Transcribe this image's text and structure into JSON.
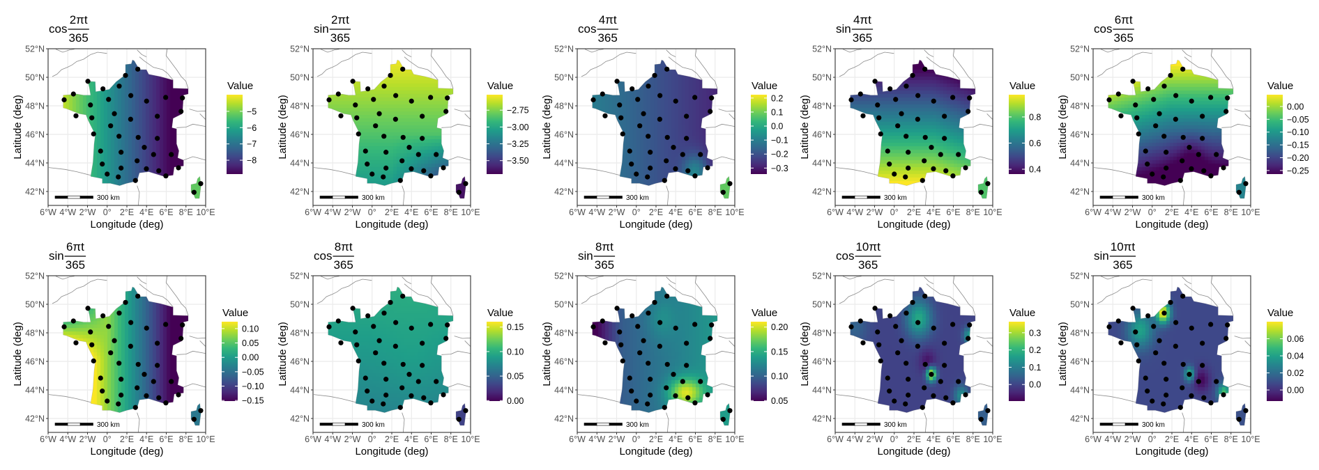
{
  "chart_data": [
    {
      "type": "heatmap",
      "title": {
        "func": "cos",
        "numerator": "2πt",
        "denominator": "365"
      },
      "legend": {
        "title": "Value",
        "min": -8.85,
        "max": -3.98,
        "ticks": [
          -5,
          -6,
          -7,
          -8
        ],
        "tick_labels": [
          "−5",
          "−6",
          "−7",
          "−8"
        ]
      }
    },
    {
      "type": "heatmap",
      "title": {
        "func": "sin",
        "numerator": "2πt",
        "denominator": "365"
      },
      "legend": {
        "title": "Value",
        "min": -3.7,
        "max": -2.52,
        "ticks": [
          -2.75,
          -3.0,
          -3.25,
          -3.5
        ],
        "tick_labels": [
          "−2.75",
          "−3.00",
          "−3.25",
          "−3.50"
        ]
      }
    },
    {
      "type": "heatmap",
      "title": {
        "func": "cos",
        "numerator": "4πt",
        "denominator": "365"
      },
      "legend": {
        "title": "Value",
        "min": -0.343,
        "max": 0.224,
        "ticks": [
          0.2,
          0.1,
          0.0,
          -0.1,
          -0.2,
          -0.3
        ],
        "tick_labels": [
          "0.2",
          "0.1",
          "0.0",
          "−0.1",
          "−0.2",
          "−0.3"
        ]
      }
    },
    {
      "type": "heatmap",
      "title": {
        "func": "sin",
        "numerator": "4πt",
        "denominator": "365"
      },
      "legend": {
        "title": "Value",
        "min": 0.363,
        "max": 0.97,
        "ticks": [
          0.8,
          0.6,
          0.4
        ],
        "tick_labels": [
          "0.8",
          "0.6",
          "0.4"
        ]
      }
    },
    {
      "type": "heatmap",
      "title": {
        "func": "cos",
        "numerator": "6πt",
        "denominator": "365"
      },
      "legend": {
        "title": "Value",
        "min": -0.264,
        "max": 0.046,
        "ticks": [
          0.0,
          -0.05,
          -0.1,
          -0.15,
          -0.2,
          -0.25
        ],
        "tick_labels": [
          "0.00",
          "−0.05",
          "−0.10",
          "−0.15",
          "−0.20",
          "−0.25"
        ]
      }
    },
    {
      "type": "heatmap",
      "title": {
        "func": "sin",
        "numerator": "6πt",
        "denominator": "365"
      },
      "legend": {
        "title": "Value",
        "min": -0.152,
        "max": 0.124,
        "ticks": [
          0.1,
          0.05,
          0.0,
          -0.05,
          -0.1,
          -0.15
        ],
        "tick_labels": [
          "0.10",
          "0.05",
          "0.00",
          "−0.05",
          "−0.10",
          "−0.15"
        ]
      }
    },
    {
      "type": "heatmap",
      "title": {
        "func": "cos",
        "numerator": "8πt",
        "denominator": "365"
      },
      "legend": {
        "title": "Value",
        "min": -0.001,
        "max": 0.161,
        "ticks": [
          0.15,
          0.1,
          0.05,
          0.0
        ],
        "tick_labels": [
          "0.15",
          "0.10",
          "0.05",
          "0.00"
        ]
      }
    },
    {
      "type": "heatmap",
      "title": {
        "func": "sin",
        "numerator": "8πt",
        "denominator": "365"
      },
      "legend": {
        "title": "Value",
        "min": 0.049,
        "max": 0.211,
        "ticks": [
          0.2,
          0.15,
          0.1,
          0.05
        ],
        "tick_labels": [
          "0.20",
          "0.15",
          "0.10",
          "0.05"
        ]
      }
    },
    {
      "type": "heatmap",
      "title": {
        "func": "cos",
        "numerator": "10πt",
        "denominator": "365"
      },
      "legend": {
        "title": "Value",
        "min": -0.096,
        "max": 0.364,
        "ticks": [
          0.3,
          0.2,
          0.1,
          0.0
        ],
        "tick_labels": [
          "0.3",
          "0.2",
          "0.1",
          "0.0"
        ]
      }
    },
    {
      "type": "heatmap",
      "title": {
        "func": "sin",
        "numerator": "10πt",
        "denominator": "365"
      },
      "legend": {
        "title": "Value",
        "min": -0.013,
        "max": 0.08,
        "ticks": [
          0.06,
          0.04,
          0.02,
          0.0
        ],
        "tick_labels": [
          "0.06",
          "0.04",
          "0.02",
          "0.00"
        ]
      }
    }
  ],
  "axes": {
    "xlabel": "Longitude (deg)",
    "ylabel": "Latitude (deg)",
    "xlim": [
      -6,
      10
    ],
    "ylim": [
      41.02,
      52
    ],
    "x_ticks": [
      -6,
      -4,
      -2,
      0,
      2,
      4,
      6,
      8,
      10
    ],
    "x_tick_labels": [
      "6°W",
      "4°W",
      "2°W",
      "0°",
      "2°E",
      "4°E",
      "6°E",
      "8°E",
      "10°E"
    ],
    "y_ticks": [
      52,
      50,
      48,
      46,
      44,
      42
    ],
    "y_tick_labels": [
      "52°N",
      "50°N",
      "48°N",
      "46°N",
      "44°N",
      "42°N"
    ],
    "grid": true
  },
  "scale_bar": {
    "label": "300 km"
  },
  "colormap": [
    "#440154",
    "#482878",
    "#3e4989",
    "#31688e",
    "#26828e",
    "#1f9e89",
    "#35b779",
    "#6ece58",
    "#b5de2b",
    "#fde725"
  ],
  "stations": [
    [
      3.11,
      50.57
    ],
    [
      1.86,
      50.13
    ],
    [
      -1.96,
      49.72
    ],
    [
      1.22,
      49.38
    ],
    [
      -0.43,
      49.19
    ],
    [
      -3.43,
      48.83
    ],
    [
      2.4,
      48.72
    ],
    [
      -4.37,
      48.42
    ],
    [
      7.64,
      48.55
    ],
    [
      5.94,
      48.59
    ],
    [
      0.14,
      48.45
    ],
    [
      4.0,
      48.33
    ],
    [
      -1.7,
      48.06
    ],
    [
      -3.17,
      47.3
    ],
    [
      7.5,
      47.61
    ],
    [
      0.73,
      47.45
    ],
    [
      5.09,
      47.27
    ],
    [
      -1.56,
      47.16
    ],
    [
      2.38,
      47.06
    ],
    [
      0.35,
      46.6
    ],
    [
      -1.38,
      46.03
    ],
    [
      1.2,
      45.87
    ],
    [
      3.15,
      45.79
    ],
    [
      5.09,
      45.72
    ],
    [
      3.77,
      45.09
    ],
    [
      -0.67,
      44.83
    ],
    [
      1.41,
      44.75
    ],
    [
      4.71,
      44.59
    ],
    [
      6.51,
      44.59
    ],
    [
      3.04,
      44.15
    ],
    [
      -0.5,
      43.92
    ],
    [
      1.41,
      43.64
    ],
    [
      3.98,
      43.59
    ],
    [
      7.24,
      43.66
    ],
    [
      5.24,
      43.45
    ],
    [
      0.0,
      43.22
    ],
    [
      1.13,
      43.02
    ],
    [
      5.96,
      43.09
    ],
    [
      2.87,
      42.77
    ],
    [
      8.82,
      41.94
    ],
    [
      9.5,
      42.55
    ]
  ]
}
